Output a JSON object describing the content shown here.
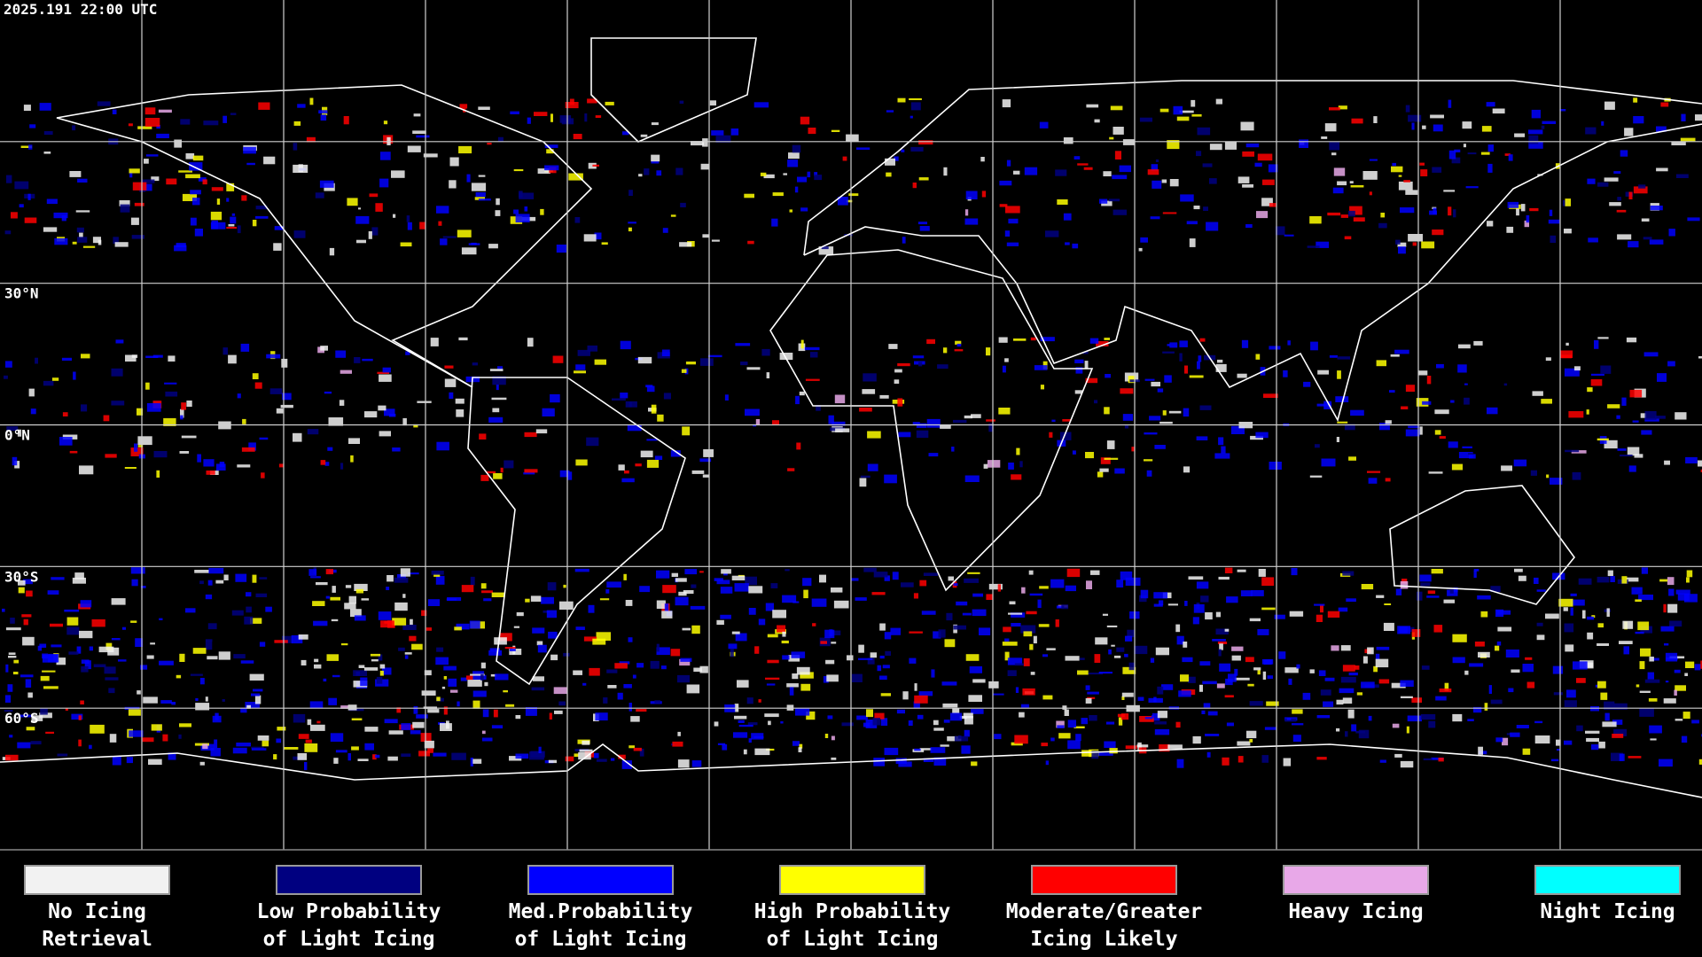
{
  "timestamp": "2025.191 22:00 UTC",
  "latitude_labels": [
    "30°N",
    "0°N",
    "30°S",
    "60°S"
  ],
  "legend": [
    {
      "lines": [
        "No Icing",
        "Retrieval"
      ],
      "color": "#f2f2f2"
    },
    {
      "lines": [
        "Low Probability",
        "of Light Icing"
      ],
      "color": "#000080"
    },
    {
      "lines": [
        "Med.Probability",
        "of Light Icing"
      ],
      "color": "#0000ff"
    },
    {
      "lines": [
        "High Probability",
        "of Light Icing"
      ],
      "color": "#ffff00"
    },
    {
      "lines": [
        "Moderate/Greater",
        "Icing Likely"
      ],
      "color": "#ff0000"
    },
    {
      "lines": [
        "Heavy Icing"
      ],
      "color": "#e8a8e8"
    },
    {
      "lines": [
        "Night Icing"
      ],
      "color": "#00ffff"
    }
  ]
}
